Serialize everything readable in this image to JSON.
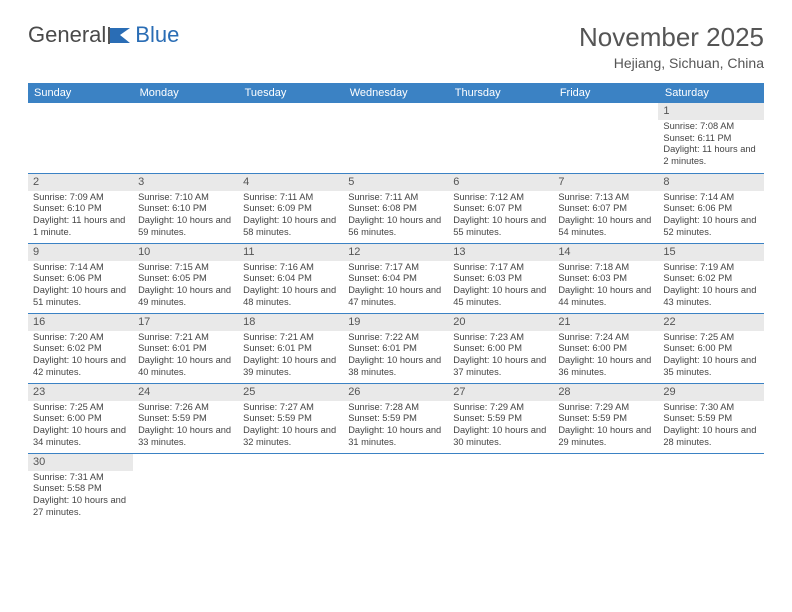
{
  "logo": {
    "text1": "General",
    "text2": "Blue"
  },
  "title": "November 2025",
  "subtitle": "Hejiang, Sichuan, China",
  "colors": {
    "header_bg": "#3b82c4",
    "header_text": "#ffffff",
    "daynum_bg": "#e9e9e9",
    "cell_border": "#3b82c4",
    "body_text": "#444444",
    "title_text": "#555555"
  },
  "weekdays": [
    "Sunday",
    "Monday",
    "Tuesday",
    "Wednesday",
    "Thursday",
    "Friday",
    "Saturday"
  ],
  "weeks": [
    [
      null,
      null,
      null,
      null,
      null,
      null,
      {
        "n": "1",
        "sr": "7:08 AM",
        "ss": "6:11 PM",
        "dl": "11 hours and 2 minutes."
      }
    ],
    [
      {
        "n": "2",
        "sr": "7:09 AM",
        "ss": "6:10 PM",
        "dl": "11 hours and 1 minute."
      },
      {
        "n": "3",
        "sr": "7:10 AM",
        "ss": "6:10 PM",
        "dl": "10 hours and 59 minutes."
      },
      {
        "n": "4",
        "sr": "7:11 AM",
        "ss": "6:09 PM",
        "dl": "10 hours and 58 minutes."
      },
      {
        "n": "5",
        "sr": "7:11 AM",
        "ss": "6:08 PM",
        "dl": "10 hours and 56 minutes."
      },
      {
        "n": "6",
        "sr": "7:12 AM",
        "ss": "6:07 PM",
        "dl": "10 hours and 55 minutes."
      },
      {
        "n": "7",
        "sr": "7:13 AM",
        "ss": "6:07 PM",
        "dl": "10 hours and 54 minutes."
      },
      {
        "n": "8",
        "sr": "7:14 AM",
        "ss": "6:06 PM",
        "dl": "10 hours and 52 minutes."
      }
    ],
    [
      {
        "n": "9",
        "sr": "7:14 AM",
        "ss": "6:06 PM",
        "dl": "10 hours and 51 minutes."
      },
      {
        "n": "10",
        "sr": "7:15 AM",
        "ss": "6:05 PM",
        "dl": "10 hours and 49 minutes."
      },
      {
        "n": "11",
        "sr": "7:16 AM",
        "ss": "6:04 PM",
        "dl": "10 hours and 48 minutes."
      },
      {
        "n": "12",
        "sr": "7:17 AM",
        "ss": "6:04 PM",
        "dl": "10 hours and 47 minutes."
      },
      {
        "n": "13",
        "sr": "7:17 AM",
        "ss": "6:03 PM",
        "dl": "10 hours and 45 minutes."
      },
      {
        "n": "14",
        "sr": "7:18 AM",
        "ss": "6:03 PM",
        "dl": "10 hours and 44 minutes."
      },
      {
        "n": "15",
        "sr": "7:19 AM",
        "ss": "6:02 PM",
        "dl": "10 hours and 43 minutes."
      }
    ],
    [
      {
        "n": "16",
        "sr": "7:20 AM",
        "ss": "6:02 PM",
        "dl": "10 hours and 42 minutes."
      },
      {
        "n": "17",
        "sr": "7:21 AM",
        "ss": "6:01 PM",
        "dl": "10 hours and 40 minutes."
      },
      {
        "n": "18",
        "sr": "7:21 AM",
        "ss": "6:01 PM",
        "dl": "10 hours and 39 minutes."
      },
      {
        "n": "19",
        "sr": "7:22 AM",
        "ss": "6:01 PM",
        "dl": "10 hours and 38 minutes."
      },
      {
        "n": "20",
        "sr": "7:23 AM",
        "ss": "6:00 PM",
        "dl": "10 hours and 37 minutes."
      },
      {
        "n": "21",
        "sr": "7:24 AM",
        "ss": "6:00 PM",
        "dl": "10 hours and 36 minutes."
      },
      {
        "n": "22",
        "sr": "7:25 AM",
        "ss": "6:00 PM",
        "dl": "10 hours and 35 minutes."
      }
    ],
    [
      {
        "n": "23",
        "sr": "7:25 AM",
        "ss": "6:00 PM",
        "dl": "10 hours and 34 minutes."
      },
      {
        "n": "24",
        "sr": "7:26 AM",
        "ss": "5:59 PM",
        "dl": "10 hours and 33 minutes."
      },
      {
        "n": "25",
        "sr": "7:27 AM",
        "ss": "5:59 PM",
        "dl": "10 hours and 32 minutes."
      },
      {
        "n": "26",
        "sr": "7:28 AM",
        "ss": "5:59 PM",
        "dl": "10 hours and 31 minutes."
      },
      {
        "n": "27",
        "sr": "7:29 AM",
        "ss": "5:59 PM",
        "dl": "10 hours and 30 minutes."
      },
      {
        "n": "28",
        "sr": "7:29 AM",
        "ss": "5:59 PM",
        "dl": "10 hours and 29 minutes."
      },
      {
        "n": "29",
        "sr": "7:30 AM",
        "ss": "5:59 PM",
        "dl": "10 hours and 28 minutes."
      }
    ],
    [
      {
        "n": "30",
        "sr": "7:31 AM",
        "ss": "5:58 PM",
        "dl": "10 hours and 27 minutes."
      },
      null,
      null,
      null,
      null,
      null,
      null
    ]
  ],
  "labels": {
    "sunrise": "Sunrise: ",
    "sunset": "Sunset: ",
    "daylight": "Daylight: "
  }
}
